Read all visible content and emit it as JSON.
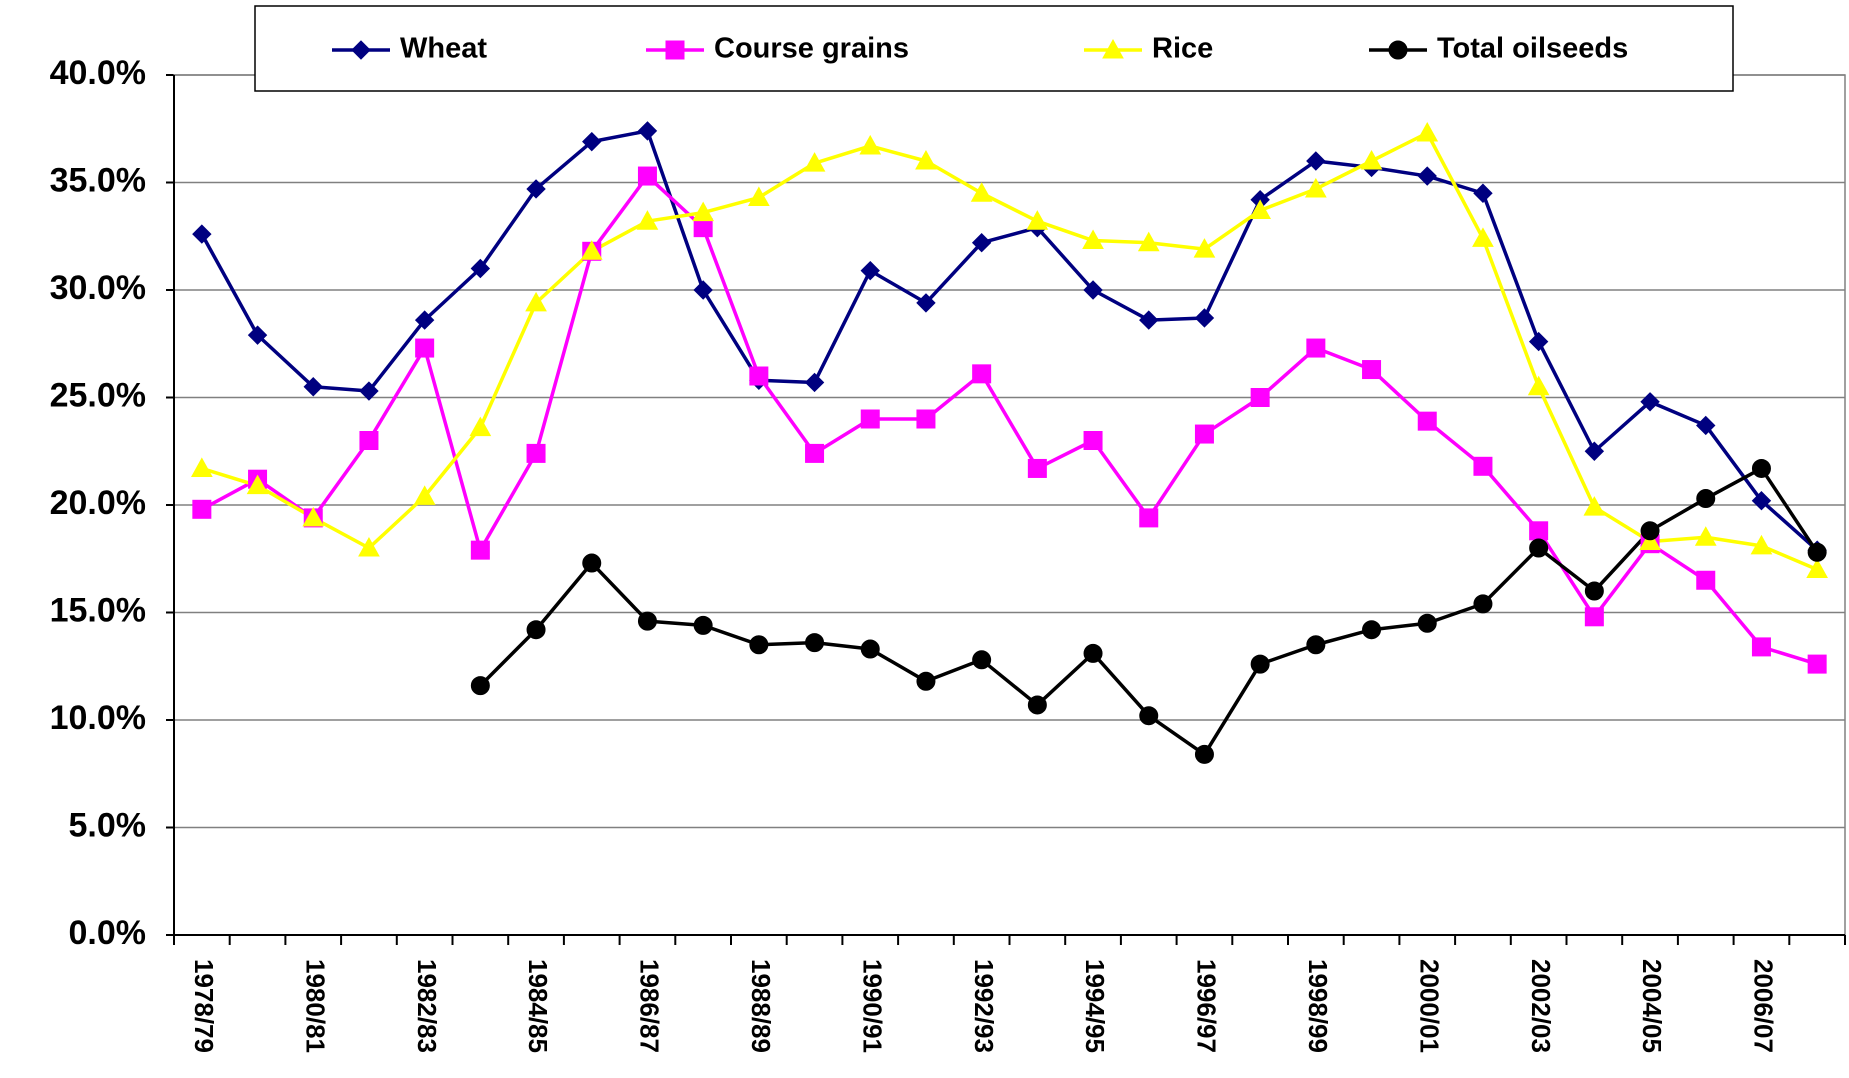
{
  "chart_data": {
    "type": "line",
    "categories": [
      "1978/79",
      null,
      "1980/81",
      null,
      "1982/83",
      null,
      "1984/85",
      null,
      "1986/87",
      null,
      "1988/89",
      null,
      "1990/91",
      null,
      "1992/93",
      null,
      "1994/95",
      null,
      "1996/97",
      null,
      "1998/99",
      null,
      "2000/01",
      null,
      "2002/03",
      null,
      "2004/05",
      null,
      "2006/07",
      null
    ],
    "series": [
      {
        "name": "Wheat",
        "color": "#000080",
        "marker": "diamond",
        "values": [
          32.6,
          27.9,
          25.5,
          25.3,
          28.6,
          31.0,
          34.7,
          36.9,
          37.4,
          30.0,
          25.8,
          25.7,
          30.9,
          29.4,
          32.2,
          32.9,
          30.0,
          28.6,
          28.7,
          34.2,
          36.0,
          35.7,
          35.3,
          34.5,
          27.6,
          22.5,
          24.8,
          23.7,
          20.2,
          17.9
        ]
      },
      {
        "name": "Course grains",
        "color": "#ff00ff",
        "marker": "square",
        "values": [
          19.8,
          21.2,
          19.4,
          23.0,
          27.3,
          17.9,
          22.4,
          31.8,
          35.3,
          32.9,
          26.0,
          22.4,
          24.0,
          24.0,
          26.1,
          21.7,
          23.0,
          19.4,
          23.3,
          25.0,
          27.3,
          26.3,
          23.9,
          21.8,
          18.8,
          14.8,
          18.2,
          16.5,
          13.4,
          12.6
        ]
      },
      {
        "name": "Rice",
        "color": "#ffff00",
        "marker": "triangle",
        "values": [
          21.7,
          20.9,
          19.4,
          18.0,
          20.4,
          23.6,
          29.4,
          31.8,
          33.2,
          33.6,
          34.3,
          35.9,
          36.7,
          36.0,
          34.5,
          33.2,
          32.3,
          32.2,
          31.9,
          33.7,
          34.7,
          36.0,
          37.3,
          32.4,
          25.5,
          19.9,
          18.3,
          18.5,
          18.1,
          17.0
        ]
      },
      {
        "name": "Total oilseeds",
        "color": "#000000",
        "marker": "circle",
        "values": [
          null,
          null,
          null,
          null,
          null,
          11.6,
          14.2,
          17.3,
          14.6,
          14.4,
          13.5,
          13.6,
          13.3,
          11.8,
          12.8,
          10.7,
          13.1,
          10.2,
          8.4,
          12.6,
          13.5,
          14.2,
          14.5,
          15.4,
          18.0,
          16.0,
          18.8,
          20.3,
          21.7,
          17.8
        ]
      }
    ],
    "ylim": [
      0,
      40
    ],
    "yticks": [
      {
        "value": 0,
        "label": "0.0%"
      },
      {
        "value": 5,
        "label": "5.0%"
      },
      {
        "value": 10,
        "label": "10.0%"
      },
      {
        "value": 15,
        "label": "15.0%"
      },
      {
        "value": 20,
        "label": "20.0%"
      },
      {
        "value": 25,
        "label": "25.0%"
      },
      {
        "value": 30,
        "label": "30.0%"
      },
      {
        "value": 35,
        "label": "35.0%"
      },
      {
        "value": 40,
        "label": "40.0%"
      }
    ],
    "grid": true,
    "legend": "top"
  }
}
